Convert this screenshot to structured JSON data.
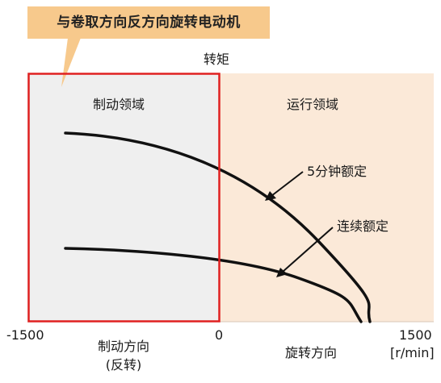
{
  "callout": {
    "text": "与卷取方向反方向旋转电动机"
  },
  "diagram": {
    "y_axis_label": "转矩",
    "region_braking": "制动领域",
    "region_running": "运行领域",
    "curve_5min": "5分钟额定",
    "curve_continuous": "连续额定",
    "x_tick_left": "-1500",
    "x_tick_zero": "0",
    "x_tick_right": "1500",
    "x_unit": "[r/min]",
    "x_braking_dir_line1": "制动方向",
    "x_braking_dir_line2": "(反转)",
    "x_rotation_dir": "旋转方向"
  },
  "colors": {
    "braking_region_fill": "#efefef",
    "running_region_fill": "#fbe9d8",
    "highlight_border": "#e02020",
    "callout_fill": "#f7c98c",
    "curve": "#111111"
  }
}
